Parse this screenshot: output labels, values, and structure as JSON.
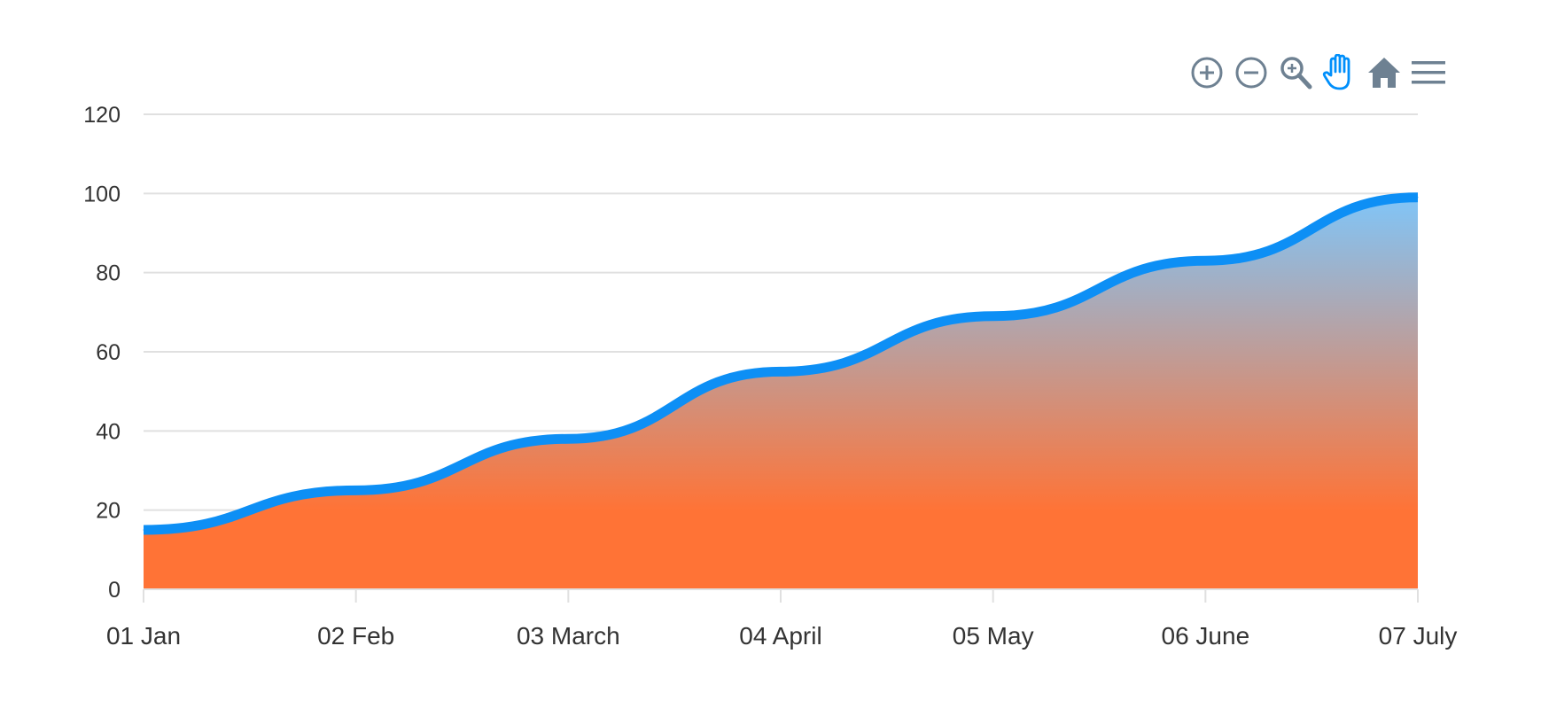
{
  "chart_data": {
    "type": "area",
    "x": [
      "01 Jan",
      "02 Feb",
      "03 March",
      "04 April",
      "05 May",
      "06 June",
      "07 July"
    ],
    "series": [
      {
        "values": [
          15,
          25,
          38,
          55,
          69,
          83,
          99
        ]
      }
    ],
    "ylim": [
      0,
      120
    ],
    "yticks": [
      0,
      20,
      40,
      60,
      80,
      100,
      120
    ],
    "grid": true,
    "line_color": "#0d8ff5",
    "fill_gradient": [
      "#80c5f8",
      "#ff7336"
    ]
  },
  "toolbar": {
    "tools": [
      {
        "name": "zoom-in",
        "icon": "zoom-in-icon"
      },
      {
        "name": "zoom-out",
        "icon": "zoom-out-icon"
      },
      {
        "name": "selection-zoom",
        "icon": "magnifier-icon"
      },
      {
        "name": "pan",
        "icon": "hand-icon",
        "active": true
      },
      {
        "name": "reset",
        "icon": "home-icon"
      },
      {
        "name": "menu",
        "icon": "hamburger-menu-icon"
      }
    ],
    "icon_color": "#6e8192",
    "active_color": "#008ffb"
  }
}
